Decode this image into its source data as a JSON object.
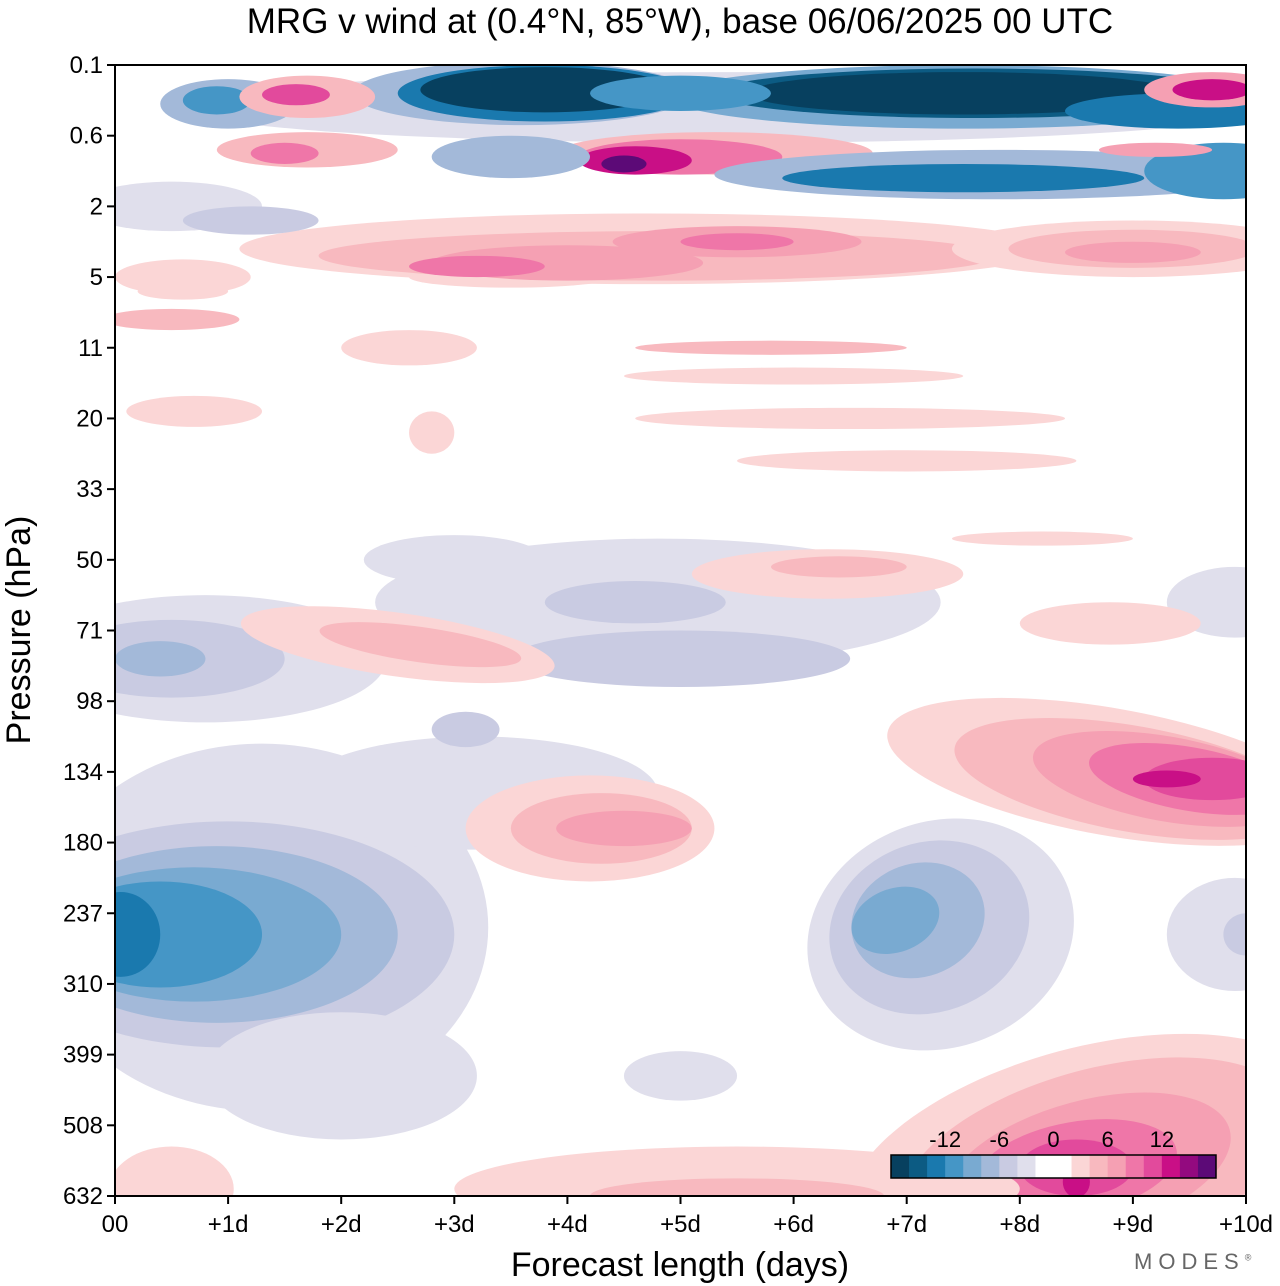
{
  "chart_data": {
    "type": "heatmap",
    "title": "MRG v wind at (0.4°N, 85°W),  base 06/06/2025  00 UTC",
    "xlabel": "Forecast length (days)",
    "ylabel": "Pressure (hPa)",
    "x_ticks": [
      "00",
      "+1d",
      "+2d",
      "+3d",
      "+4d",
      "+5d",
      "+6d",
      "+7d",
      "+8d",
      "+9d",
      "+10d"
    ],
    "x_range_days": [
      0,
      10
    ],
    "y_ticks": [
      "0.1",
      "0.6",
      "2",
      "5",
      "11",
      "20",
      "33",
      "50",
      "71",
      "98",
      "134",
      "180",
      "237",
      "310",
      "399",
      "508",
      "632"
    ],
    "colorbar": {
      "tick_labels": [
        "-12",
        "-6",
        "0",
        "6",
        "12"
      ],
      "tick_values": [
        -12,
        -6,
        0,
        6,
        12
      ],
      "level_step": 2,
      "colors": [
        "#07405f",
        "#0c5b83",
        "#1a79ae",
        "#4596c6",
        "#79aad1",
        "#a3b9d9",
        "#c9cbe2",
        "#e0dfec",
        "#ffffff",
        "#ffffff",
        "#fbd6d6",
        "#f8b9bf",
        "#f5a0b3",
        "#ef76a8",
        "#e24a9c",
        "#c90f86",
        "#930a7f",
        "#5c0a77"
      ]
    },
    "features": [
      {
        "sign": "negative",
        "peak": -14,
        "day_range": [
          2.5,
          4.5
        ],
        "level_hPa": "0.1-0.6"
      },
      {
        "sign": "negative",
        "peak": -14,
        "day_range": [
          6,
          8.5
        ],
        "level_hPa": "0.1-0.6"
      },
      {
        "sign": "positive",
        "peak": 12,
        "day_range": [
          4.2,
          6
        ],
        "level_hPa": "0.6-1"
      },
      {
        "sign": "positive",
        "peak": 10,
        "day_range": [
          3,
          6
        ],
        "level_hPa": "2-5"
      },
      {
        "sign": "positive",
        "peak": 14,
        "day_range": [
          8.3,
          10
        ],
        "level_hPa": "98-180"
      },
      {
        "sign": "positive",
        "peak": 14,
        "day_range": [
          7.5,
          10
        ],
        "level_hPa": "310-632"
      },
      {
        "sign": "positive",
        "peak": 8,
        "day_range": [
          3.3,
          6
        ],
        "level_hPa": "134-237"
      },
      {
        "sign": "negative",
        "peak": -10,
        "day_range": [
          0,
          2.8
        ],
        "level_hPa": "180-399"
      },
      {
        "sign": "negative",
        "peak": -6,
        "day_range": [
          6,
          7.5
        ],
        "level_hPa": "180-310"
      },
      {
        "sign": "negative",
        "peak": -8,
        "day_range": [
          0,
          1.5
        ],
        "level_hPa": "71-98"
      }
    ]
  },
  "brand": "MODES",
  "brand_mark": "®"
}
